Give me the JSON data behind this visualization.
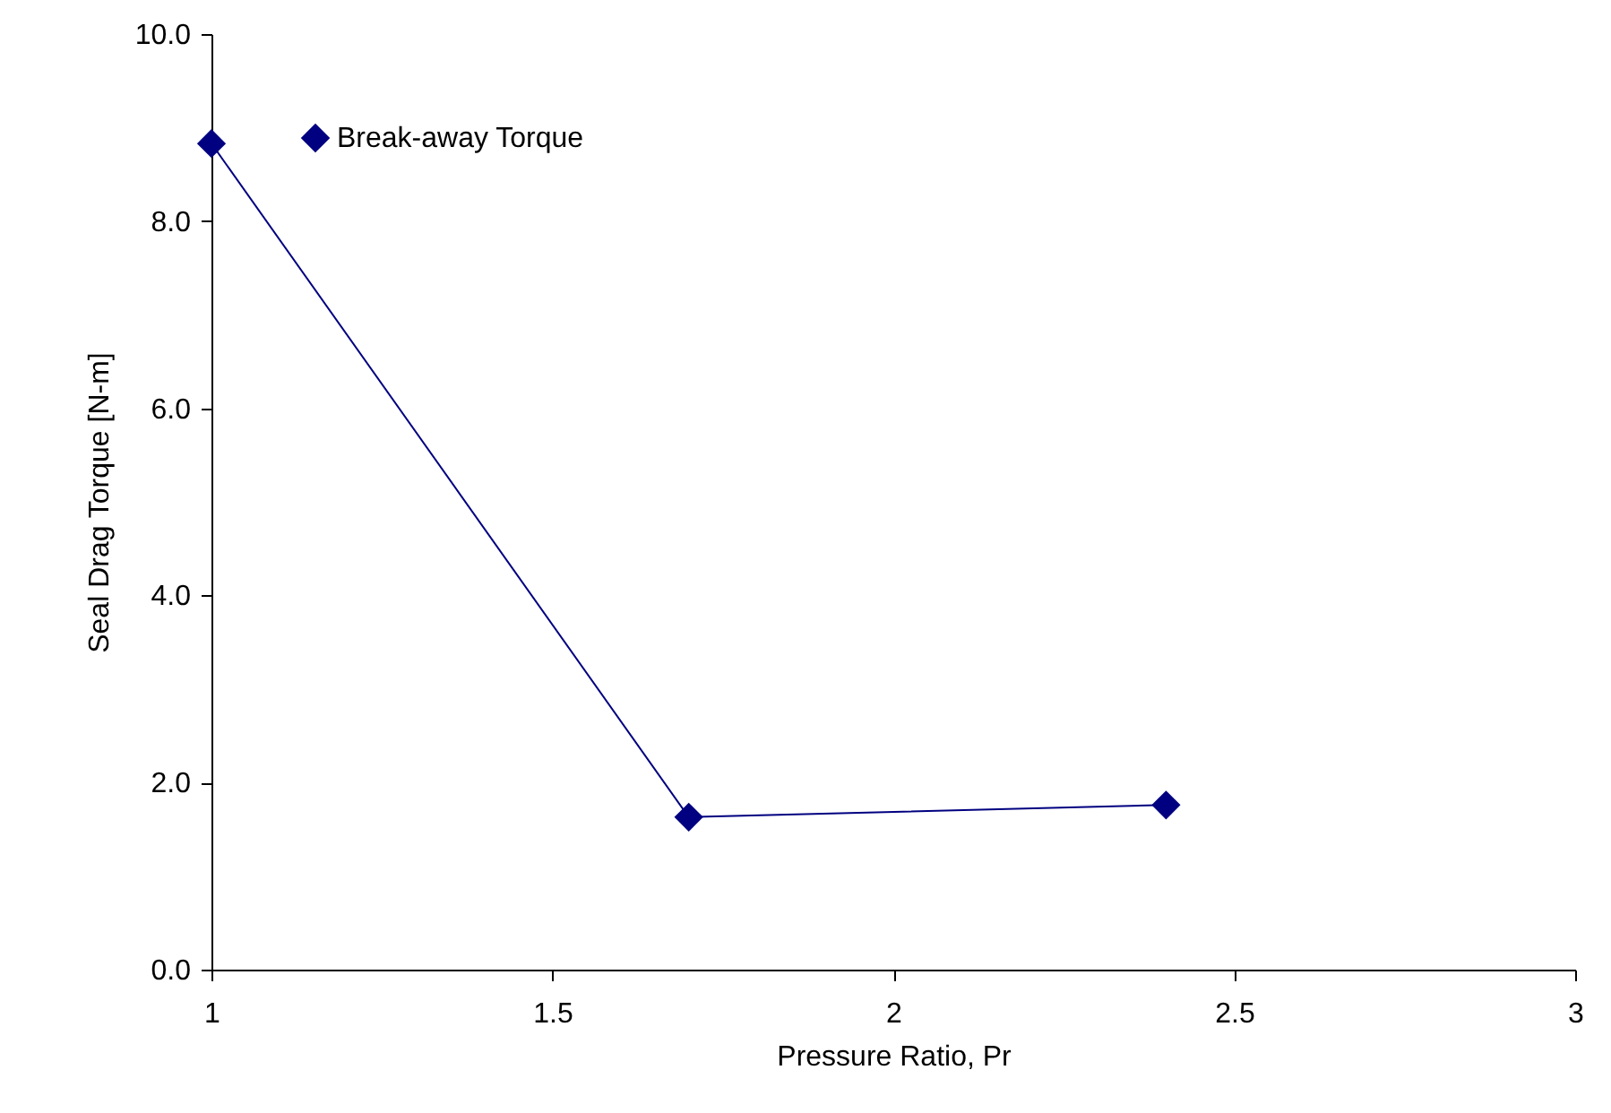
{
  "chart_data": {
    "type": "line",
    "xlabel": "Pressure Ratio, Pr",
    "ylabel": "Seal Drag Torque [N-m]",
    "x": [
      1,
      1.7,
      2.4
    ],
    "series": [
      {
        "name": "Break-away Torque",
        "color": "#000080",
        "values": [
          8.83,
          1.63,
          1.76
        ]
      }
    ],
    "xlim": [
      1,
      3
    ],
    "xticks": [
      1,
      1.5,
      2,
      2.5,
      3
    ],
    "ylim": [
      0,
      10
    ],
    "yticks": [
      {
        "value": 0,
        "label": "0.0"
      },
      {
        "value": 2,
        "label": "2.0"
      },
      {
        "value": 4,
        "label": "4.0"
      },
      {
        "value": 6,
        "label": "6.0"
      },
      {
        "value": 8,
        "label": "8.0"
      },
      {
        "value": 10,
        "label": "10.0"
      }
    ],
    "grid": false,
    "legend": "top left",
    "marker": "diamond",
    "line_style": "solid"
  }
}
